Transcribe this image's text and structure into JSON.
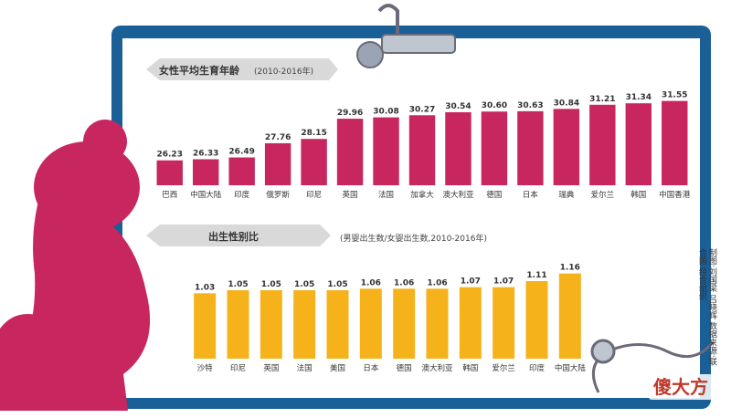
{
  "chart_data": [
    {
      "type": "bar",
      "title": "女性平均生育年龄",
      "subtitle": "(2010-2016年)",
      "categories": [
        "巴西",
        "中国大陆",
        "印度",
        "俄罗斯",
        "印尼",
        "英国",
        "法国",
        "加拿大",
        "澳大利亚",
        "德国",
        "日本",
        "瑞典",
        "爱尔兰",
        "韩国",
        "中国香港"
      ],
      "values": [
        26.23,
        26.33,
        26.49,
        27.76,
        28.15,
        29.96,
        30.08,
        30.27,
        30.54,
        30.6,
        30.63,
        30.84,
        31.21,
        31.34,
        31.55
      ],
      "value_labels": [
        "26.23",
        "26.33",
        "26.49",
        "27.76",
        "28.15",
        "29.96",
        "30.08",
        "30.27",
        "30.54",
        "30.60",
        "30.63",
        "30.84",
        "31.21",
        "31.34",
        "31.55"
      ],
      "ylim": [
        0,
        32
      ],
      "bar_color": "#c8265e",
      "grid": false
    },
    {
      "type": "bar",
      "title": "出生性别比",
      "subtitle": "(男婴出生数/女婴出生数,2010-2016年)",
      "categories": [
        "沙特",
        "印尼",
        "英国",
        "法国",
        "美国",
        "日本",
        "德国",
        "澳大利亚",
        "韩国",
        "爱尔兰",
        "印度",
        "中国大陆"
      ],
      "values": [
        1.03,
        1.05,
        1.05,
        1.05,
        1.05,
        1.06,
        1.06,
        1.06,
        1.07,
        1.07,
        1.11,
        1.16
      ],
      "value_labels": [
        "1.03",
        "1.05",
        "1.05",
        "1.05",
        "1.05",
        "1.06",
        "1.06",
        "1.06",
        "1.07",
        "1.07",
        "1.11",
        "1.16"
      ],
      "ylim": [
        0,
        1.2
      ],
      "bar_color": "#f5b21b",
      "grid": false
    }
  ],
  "side_note": "制图:刘国梁 吕晓辉 数据来源:联合国 经合组织",
  "watermark": "傻大方",
  "colors": {
    "frame": "#1a5f96",
    "panel": "#ffffff",
    "silhouette": "#c8265e",
    "title_tab": "#d9d9d9"
  }
}
